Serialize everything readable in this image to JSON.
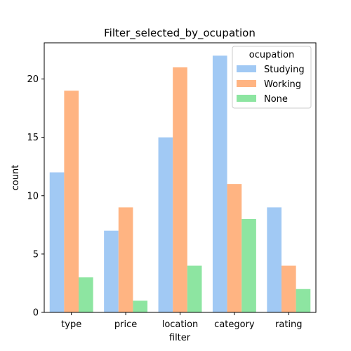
{
  "chart_data": {
    "type": "bar",
    "title": "Filter_selected_by_ocupation",
    "xlabel": "filter",
    "ylabel": "count",
    "categories": [
      "type",
      "price",
      "location",
      "category",
      "rating"
    ],
    "ylim": [
      0,
      23.1
    ],
    "yticks": [
      0,
      5,
      10,
      15,
      20
    ],
    "grid": false,
    "legend": {
      "title": "ocupation",
      "placement": "top-right"
    },
    "series": [
      {
        "name": "Studying",
        "color": "#a1c9f4",
        "values": [
          12,
          7,
          15,
          22,
          9
        ]
      },
      {
        "name": "Working",
        "color": "#ffb482",
        "values": [
          19,
          9,
          21,
          11,
          4
        ]
      },
      {
        "name": "None",
        "color": "#8de5a1",
        "values": [
          3,
          1,
          4,
          8,
          2
        ]
      }
    ]
  }
}
